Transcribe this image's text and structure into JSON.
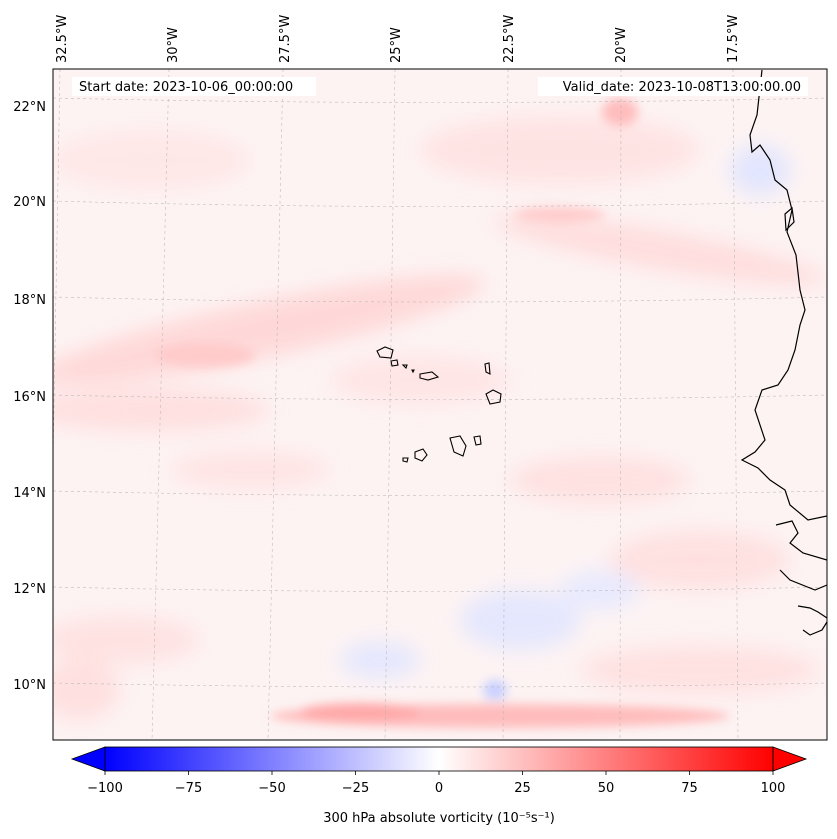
{
  "map": {
    "annotations": {
      "start_date": "Start date: 2023-10-06_00:00:00",
      "valid_date": "Valid_date: 2023-10-08T13:00:00.00"
    },
    "lon_labels": [
      "32.5°W",
      "30°W",
      "27.5°W",
      "25°W",
      "22.5°W",
      "20°W",
      "17.5°W"
    ],
    "lat_labels": [
      "22°N",
      "20°N",
      "18°N",
      "16°N",
      "14°N",
      "12°N",
      "10°N"
    ],
    "colorbar": {
      "label": "300 hPa absolute vorticity (10⁻⁵s⁻¹)",
      "ticks": [
        "−100",
        "−75",
        "−50",
        "−25",
        "0",
        "25",
        "50",
        "75",
        "100"
      ],
      "vmin": -100,
      "vmax": 100,
      "extend": "both",
      "colormap": "bwr"
    },
    "colors": {
      "negative": "#0000ff",
      "zero": "#ffffff",
      "positive": "#ff0000",
      "coastline": "#000000",
      "gridline": "#b0b0b0"
    }
  }
}
